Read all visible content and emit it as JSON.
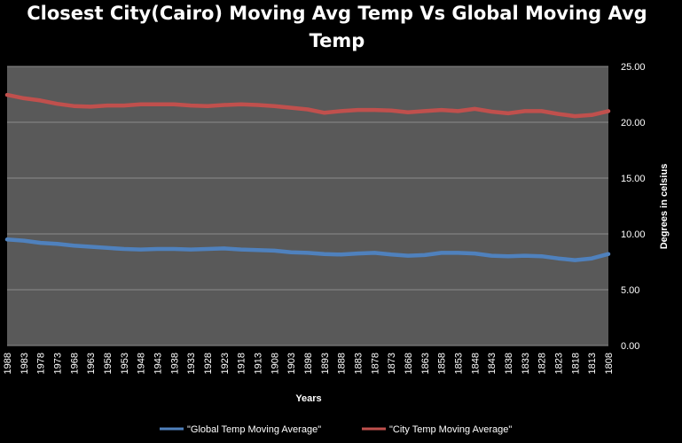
{
  "chart_data": {
    "type": "line",
    "title_line1": "Closest City(Cairo) Moving Avg Temp Vs Global Moving Avg",
    "title_line2": "Temp",
    "xlabel": "Years",
    "ylabel": "Degrees in celsius",
    "ylim": [
      0,
      25
    ],
    "y_ticks": [
      "0.00",
      "5.00",
      "10.00",
      "15.00",
      "20.00",
      "25.00"
    ],
    "y_axis_side": "right",
    "x_reversed": true,
    "x_range": [
      1988,
      1808
    ],
    "x_ticks": [
      "1988",
      "1983",
      "1978",
      "1973",
      "1968",
      "1963",
      "1958",
      "1953",
      "1948",
      "1943",
      "1938",
      "1933",
      "1928",
      "1923",
      "1918",
      "1913",
      "1908",
      "1903",
      "1898",
      "1893",
      "1888",
      "1883",
      "1878",
      "1873",
      "1868",
      "1863",
      "1858",
      "1853",
      "1848",
      "1843",
      "1838",
      "1833",
      "1828",
      "1823",
      "1818",
      "1813",
      "1808"
    ],
    "grid": true,
    "legend_position": "bottom",
    "plot_background": "#595959",
    "gridline_color": "#8c8c8c",
    "series": [
      {
        "name": "\"Global Temp Moving Average\"",
        "color": "#4f81bd",
        "x": [
          1988,
          1983,
          1978,
          1973,
          1968,
          1963,
          1958,
          1953,
          1948,
          1943,
          1938,
          1933,
          1928,
          1923,
          1918,
          1913,
          1908,
          1903,
          1898,
          1893,
          1888,
          1883,
          1878,
          1873,
          1868,
          1863,
          1858,
          1853,
          1848,
          1843,
          1838,
          1833,
          1828,
          1823,
          1818,
          1813,
          1808
        ],
        "values": [
          9.5,
          9.4,
          9.2,
          9.1,
          8.95,
          8.85,
          8.75,
          8.65,
          8.6,
          8.65,
          8.65,
          8.6,
          8.65,
          8.7,
          8.6,
          8.55,
          8.5,
          8.35,
          8.3,
          8.2,
          8.15,
          8.25,
          8.3,
          8.15,
          8.05,
          8.1,
          8.3,
          8.3,
          8.25,
          8.05,
          8.0,
          8.05,
          8.0,
          7.8,
          7.65,
          7.8,
          8.2
        ]
      },
      {
        "name": "\"City Temp Moving Average\"",
        "color": "#c0504d",
        "x": [
          1988,
          1983,
          1978,
          1973,
          1968,
          1963,
          1958,
          1953,
          1948,
          1943,
          1938,
          1933,
          1928,
          1923,
          1918,
          1913,
          1908,
          1903,
          1898,
          1893,
          1888,
          1883,
          1878,
          1873,
          1868,
          1863,
          1858,
          1853,
          1848,
          1843,
          1838,
          1833,
          1828,
          1823,
          1818,
          1813,
          1808
        ],
        "values": [
          22.45,
          22.15,
          21.95,
          21.65,
          21.45,
          21.4,
          21.5,
          21.5,
          21.6,
          21.6,
          21.6,
          21.5,
          21.45,
          21.55,
          21.6,
          21.55,
          21.45,
          21.3,
          21.15,
          20.85,
          21.0,
          21.1,
          21.1,
          21.05,
          20.9,
          21.0,
          21.1,
          21.0,
          21.2,
          20.95,
          20.8,
          21.0,
          21.0,
          20.75,
          20.55,
          20.65,
          21.0
        ]
      }
    ]
  }
}
